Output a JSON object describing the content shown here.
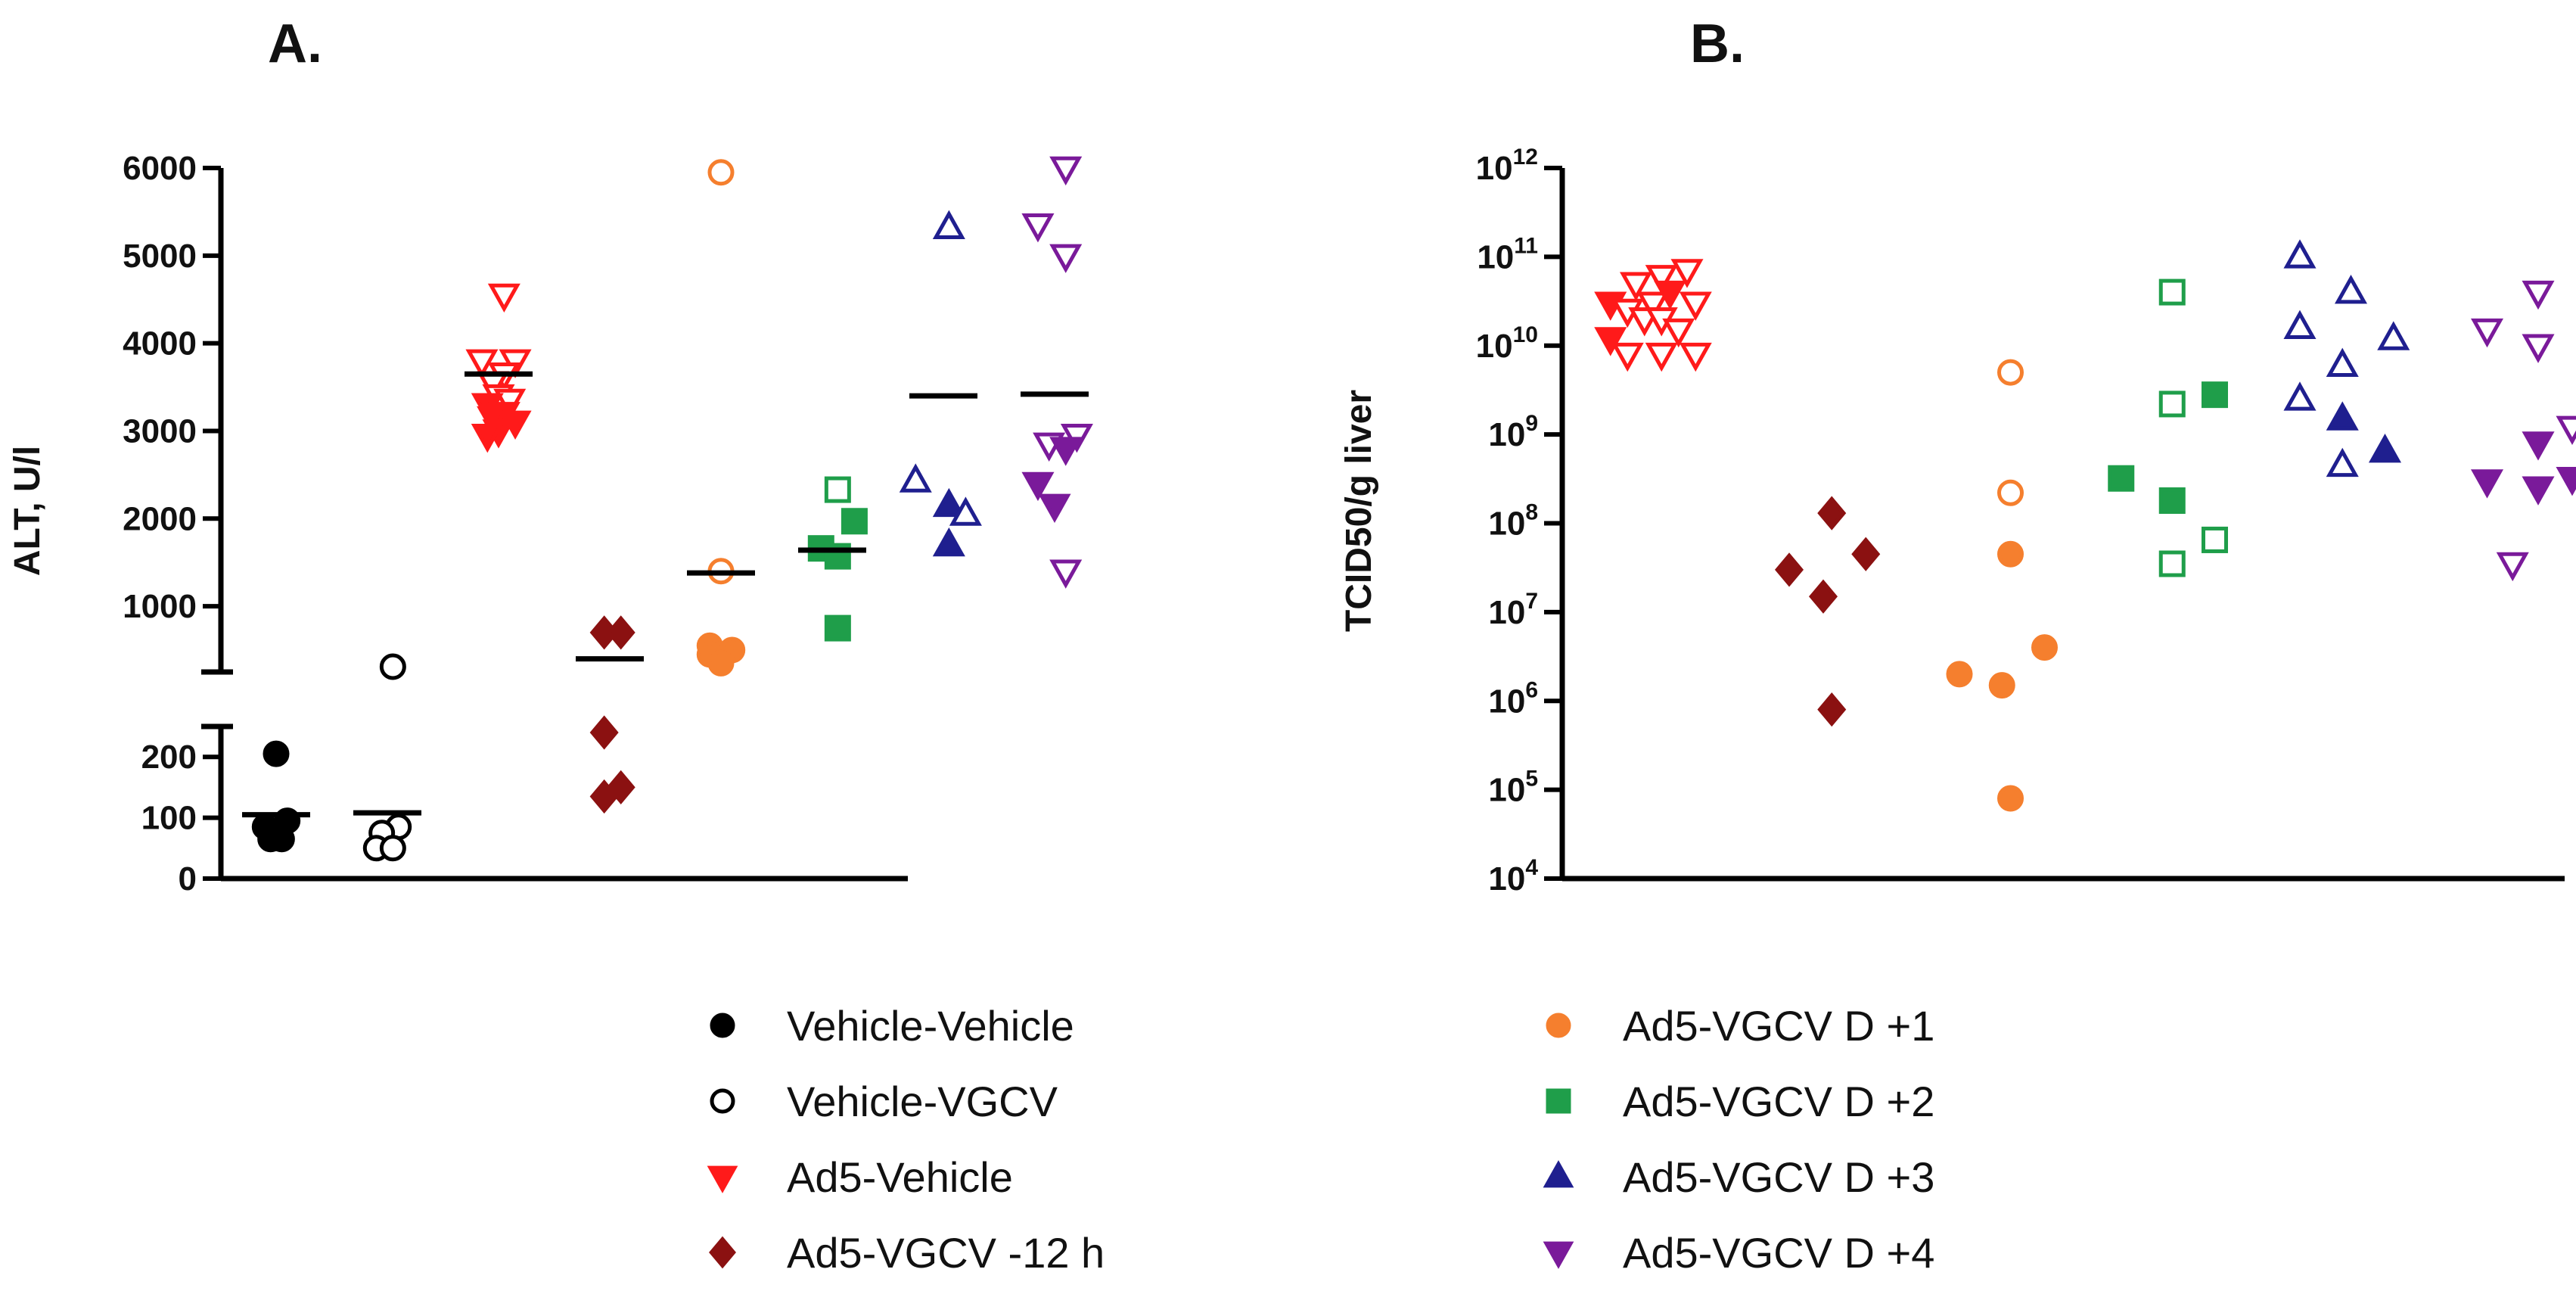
{
  "figure": {
    "panel_a_label": "A.",
    "panel_b_label": "B."
  },
  "legend": {
    "left": [
      {
        "label": "Vehicle-Vehicle",
        "color": "#000000",
        "marker": "circle",
        "filled": true
      },
      {
        "label": "Vehicle-VGCV",
        "color": "#000000",
        "marker": "circle",
        "filled": false
      },
      {
        "label": "Ad5-Vehicle",
        "color": "#ff1a1a",
        "marker": "triangle-down",
        "filled": true
      },
      {
        "label": "Ad5-VGCV -12 h",
        "color": "#8b1111",
        "marker": "diamond",
        "filled": true
      }
    ],
    "right": [
      {
        "label": "Ad5-VGCV D +1",
        "color": "#f57f2e",
        "marker": "circle",
        "filled": true
      },
      {
        "label": "Ad5-VGCV D +2",
        "color": "#1f9e4a",
        "marker": "square",
        "filled": true
      },
      {
        "label": "Ad5-VGCV D +3",
        "color": "#1f1f8f",
        "marker": "triangle-up",
        "filled": true
      },
      {
        "label": "Ad5-VGCV D +4",
        "color": "#7a1a9a",
        "marker": "triangle-down",
        "filled": true
      }
    ]
  },
  "chart_data": [
    {
      "type": "scatter",
      "title": "A.",
      "xlabel": "",
      "ylabel": "ALT, U/l",
      "y_axis": "broken",
      "ylim_lower": [
        0,
        250
      ],
      "ylim_upper": [
        250,
        6000
      ],
      "yticks_lower": [
        0,
        100,
        200
      ],
      "yticks_upper": [
        1000,
        2000,
        3000,
        4000,
        5000,
        6000
      ],
      "categories": [
        "Vehicle-Vehicle",
        "Vehicle-VGCV",
        "Ad5-Vehicle",
        "Ad5-VGCV -12 h",
        "Ad5-VGCV D +1",
        "Ad5-VGCV D +2",
        "Ad5-VGCV D +3",
        "Ad5-VGCV D +4"
      ],
      "series": [
        {
          "name": "Vehicle-Vehicle",
          "marker": "circle",
          "color": "#000000",
          "mean": 105,
          "points": [
            {
              "x": 0,
              "y": 205,
              "filled": true
            },
            {
              "x": 0.1,
              "y": 95,
              "filled": true
            },
            {
              "x": -0.1,
              "y": 85,
              "filled": true
            },
            {
              "x": 0.05,
              "y": 65,
              "filled": true
            },
            {
              "x": -0.05,
              "y": 65,
              "filled": true
            }
          ]
        },
        {
          "name": "Vehicle-VGCV",
          "marker": "circle",
          "color": "#000000",
          "mean": 108,
          "points": [
            {
              "x": 0.05,
              "y": 310,
              "filled": false
            },
            {
              "x": 0.1,
              "y": 85,
              "filled": false
            },
            {
              "x": -0.05,
              "y": 75,
              "filled": false
            },
            {
              "x": -0.1,
              "y": 50,
              "filled": false
            },
            {
              "x": 0.05,
              "y": 50,
              "filled": false
            }
          ]
        },
        {
          "name": "Ad5-Vehicle",
          "marker": "triangle-down",
          "color": "#ff1a1a",
          "mean": 3650,
          "points": [
            {
              "x": 0.05,
              "y": 4550,
              "filled": false
            },
            {
              "x": -0.15,
              "y": 3800,
              "filled": false
            },
            {
              "x": 0.15,
              "y": 3800,
              "filled": false
            },
            {
              "x": 0.05,
              "y": 3650,
              "filled": false
            },
            {
              "x": -0.05,
              "y": 3550,
              "filled": false
            },
            {
              "x": 0,
              "y": 3400,
              "filled": false
            },
            {
              "x": 0.1,
              "y": 3350,
              "filled": false
            },
            {
              "x": -0.1,
              "y": 3300,
              "filled": true
            },
            {
              "x": 0.05,
              "y": 3200,
              "filled": true
            },
            {
              "x": -0.05,
              "y": 3150,
              "filled": true
            },
            {
              "x": 0.15,
              "y": 3100,
              "filled": true
            },
            {
              "x": 0,
              "y": 3000,
              "filled": true
            },
            {
              "x": -0.1,
              "y": 2950,
              "filled": true
            }
          ]
        },
        {
          "name": "Ad5-VGCV -12 h",
          "marker": "diamond",
          "color": "#8b1111",
          "mean": 400,
          "points": [
            {
              "x": -0.05,
              "y": 700,
              "filled": true
            },
            {
              "x": 0.1,
              "y": 700,
              "filled": true
            },
            {
              "x": -0.05,
              "y": 240,
              "filled": true
            },
            {
              "x": -0.05,
              "y": 135,
              "filled": true
            },
            {
              "x": 0.1,
              "y": 150,
              "filled": true
            }
          ]
        },
        {
          "name": "Ad5-VGCV D +1",
          "marker": "circle",
          "color": "#f57f2e",
          "mean": 1380,
          "points": [
            {
              "x": 0,
              "y": 5950,
              "filled": false
            },
            {
              "x": 0,
              "y": 1400,
              "filled": false
            },
            {
              "x": -0.1,
              "y": 550,
              "filled": true
            },
            {
              "x": 0.1,
              "y": 500,
              "filled": true
            },
            {
              "x": 0,
              "y": 450,
              "filled": true
            },
            {
              "x": -0.1,
              "y": 450,
              "filled": true
            },
            {
              "x": 0,
              "y": 350,
              "filled": true
            }
          ]
        },
        {
          "name": "Ad5-VGCV D +2",
          "marker": "square",
          "color": "#1f9e4a",
          "mean": 1640,
          "points": [
            {
              "x": 0.05,
              "y": 2330,
              "filled": false
            },
            {
              "x": 0.2,
              "y": 1970,
              "filled": true
            },
            {
              "x": -0.1,
              "y": 1660,
              "filled": true
            },
            {
              "x": 0.05,
              "y": 1570,
              "filled": true
            },
            {
              "x": 0.05,
              "y": 750,
              "filled": true
            }
          ]
        },
        {
          "name": "Ad5-VGCV D +3",
          "marker": "triangle-up",
          "color": "#1f1f8f",
          "mean": 3400,
          "points": [
            {
              "x": 0.05,
              "y": 5320,
              "filled": false
            },
            {
              "x": -0.25,
              "y": 2430,
              "filled": false
            },
            {
              "x": 0.05,
              "y": 2150,
              "filled": true
            },
            {
              "x": 0.2,
              "y": 2050,
              "filled": false
            },
            {
              "x": 0.05,
              "y": 1700,
              "filled": true
            }
          ]
        },
        {
          "name": "Ad5-VGCV D +4",
          "marker": "triangle-down",
          "color": "#7a1a9a",
          "mean": 3420,
          "points": [
            {
              "x": 0.1,
              "y": 6000,
              "filled": false
            },
            {
              "x": -0.15,
              "y": 5350,
              "filled": false
            },
            {
              "x": 0.1,
              "y": 5000,
              "filled": false
            },
            {
              "x": 0.2,
              "y": 2950,
              "filled": false
            },
            {
              "x": -0.05,
              "y": 2850,
              "filled": false
            },
            {
              "x": 0.1,
              "y": 2800,
              "filled": true
            },
            {
              "x": -0.15,
              "y": 2400,
              "filled": true
            },
            {
              "x": 0,
              "y": 2150,
              "filled": true
            },
            {
              "x": 0.1,
              "y": 1400,
              "filled": false
            }
          ]
        }
      ]
    },
    {
      "type": "scatter",
      "title": "B.",
      "xlabel": "",
      "ylabel": "TCID50/g liver",
      "y_scale": "log10",
      "ylim_exp": [
        4,
        12
      ],
      "ytick_exponents": [
        4,
        5,
        6,
        7,
        8,
        9,
        10,
        11,
        12
      ],
      "ytick_base": "10",
      "categories": [
        "Ad5-Vehicle",
        "Ad5-VGCV -12 h",
        "Ad5-VGCV D +1",
        "Ad5-VGCV D +2",
        "Ad5-VGCV D +3",
        "Ad5-VGCV D +4"
      ],
      "series": [
        {
          "name": "Ad5-Vehicle",
          "marker": "triangle-down",
          "color": "#ff1a1a",
          "points": [
            {
              "x": -0.1,
              "y": 50000000000.0,
              "filled": false
            },
            {
              "x": 0.05,
              "y": 60000000000.0,
              "filled": false
            },
            {
              "x": 0.2,
              "y": 70000000000.0,
              "filled": false
            },
            {
              "x": -0.25,
              "y": 30000000000.0,
              "filled": true
            },
            {
              "x": -0.15,
              "y": 25000000000.0,
              "filled": false
            },
            {
              "x": 0,
              "y": 30000000000.0,
              "filled": false
            },
            {
              "x": 0.1,
              "y": 40000000000.0,
              "filled": true
            },
            {
              "x": 0.25,
              "y": 30000000000.0,
              "filled": false
            },
            {
              "x": -0.05,
              "y": 20000000000.0,
              "filled": false
            },
            {
              "x": 0.05,
              "y": 20000000000.0,
              "filled": false
            },
            {
              "x": 0.15,
              "y": 15000000000.0,
              "filled": false
            },
            {
              "x": -0.25,
              "y": 12000000000.0,
              "filled": true
            },
            {
              "x": -0.15,
              "y": 8000000000.0,
              "filled": false
            },
            {
              "x": 0.05,
              "y": 8000000000.0,
              "filled": false
            },
            {
              "x": 0.25,
              "y": 8000000000.0,
              "filled": false
            }
          ]
        },
        {
          "name": "Ad5-VGCV -12 h",
          "marker": "diamond",
          "color": "#8b1111",
          "points": [
            {
              "x": 0.05,
              "y": 130000000.0,
              "filled": true
            },
            {
              "x": 0.25,
              "y": 45000000.0,
              "filled": true
            },
            {
              "x": -0.2,
              "y": 30000000.0,
              "filled": true
            },
            {
              "x": 0,
              "y": 15000000.0,
              "filled": true
            },
            {
              "x": 0.05,
              "y": 800000.0,
              "filled": true
            }
          ]
        },
        {
          "name": "Ad5-VGCV D +1",
          "marker": "circle",
          "color": "#f57f2e",
          "points": [
            {
              "x": 0.1,
              "y": 5000000000.0,
              "filled": false
            },
            {
              "x": 0.1,
              "y": 220000000.0,
              "filled": false
            },
            {
              "x": 0.1,
              "y": 45000000.0,
              "filled": true
            },
            {
              "x": 0.3,
              "y": 4000000.0,
              "filled": true
            },
            {
              "x": -0.2,
              "y": 2000000.0,
              "filled": true
            },
            {
              "x": 0.05,
              "y": 1500000.0,
              "filled": true
            },
            {
              "x": 0.1,
              "y": 80000.0,
              "filled": true
            }
          ]
        },
        {
          "name": "Ad5-VGCV D +2",
          "marker": "square",
          "color": "#1f9e4a",
          "points": [
            {
              "x": 0.05,
              "y": 40000000000.0,
              "filled": false
            },
            {
              "x": 0.3,
              "y": 2800000000.0,
              "filled": true
            },
            {
              "x": 0.05,
              "y": 2200000000.0,
              "filled": false
            },
            {
              "x": -0.25,
              "y": 320000000.0,
              "filled": true
            },
            {
              "x": 0.05,
              "y": 180000000.0,
              "filled": true
            },
            {
              "x": 0.3,
              "y": 65000000.0,
              "filled": false
            },
            {
              "x": 0.05,
              "y": 35000000.0,
              "filled": false
            }
          ]
        },
        {
          "name": "Ad5-VGCV D +3",
          "marker": "triangle-up",
          "color": "#1f1f8f",
          "points": [
            {
              "x": -0.2,
              "y": 100000000000.0,
              "filled": false
            },
            {
              "x": 0.1,
              "y": 40000000000.0,
              "filled": false
            },
            {
              "x": -0.2,
              "y": 16000000000.0,
              "filled": false
            },
            {
              "x": 0.35,
              "y": 12000000000.0,
              "filled": false
            },
            {
              "x": 0.05,
              "y": 6000000000.0,
              "filled": false
            },
            {
              "x": -0.2,
              "y": 2500000000.0,
              "filled": false
            },
            {
              "x": 0.05,
              "y": 1500000000.0,
              "filled": true
            },
            {
              "x": 0.05,
              "y": 450000000.0,
              "filled": false
            },
            {
              "x": 0.3,
              "y": 650000000.0,
              "filled": true
            }
          ]
        },
        {
          "name": "Ad5-VGCV D +4",
          "marker": "triangle-down",
          "color": "#7a1a9a",
          "points": [
            {
              "x": 0.2,
              "y": 40000000000.0,
              "filled": false
            },
            {
              "x": -0.1,
              "y": 15000000000.0,
              "filled": false
            },
            {
              "x": 0.2,
              "y": 10000000000.0,
              "filled": false
            },
            {
              "x": 0.4,
              "y": 1200000000.0,
              "filled": false
            },
            {
              "x": 0.2,
              "y": 800000000.0,
              "filled": true
            },
            {
              "x": -0.1,
              "y": 300000000.0,
              "filled": true
            },
            {
              "x": 0.2,
              "y": 250000000.0,
              "filled": true
            },
            {
              "x": 0.4,
              "y": 320000000.0,
              "filled": true
            },
            {
              "x": 0.05,
              "y": 35000000.0,
              "filled": false
            }
          ]
        }
      ]
    }
  ]
}
